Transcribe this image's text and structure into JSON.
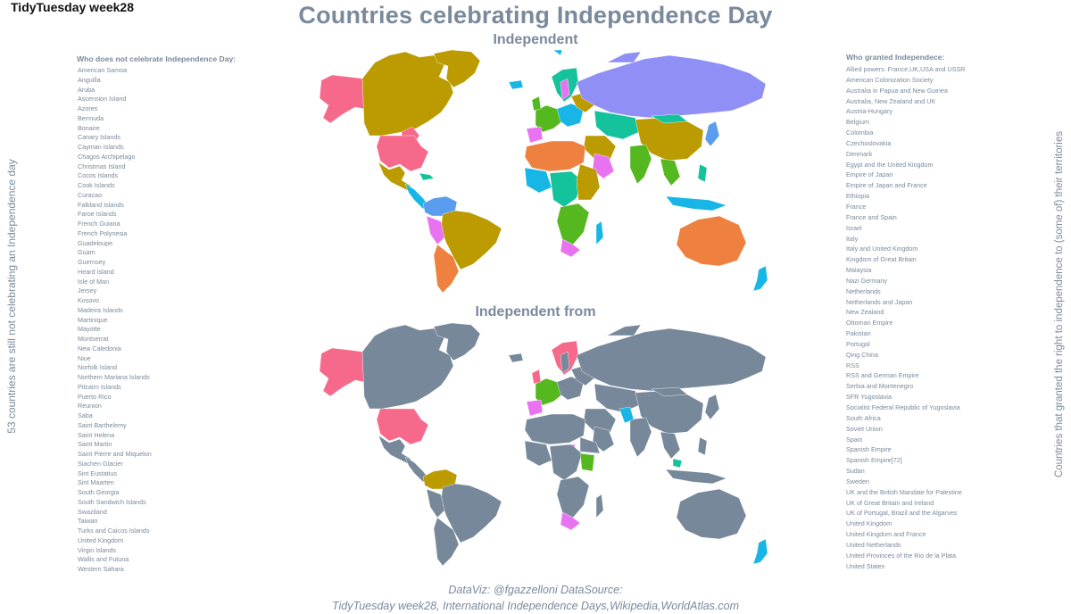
{
  "header": {
    "tag": "TidyTuesday week28",
    "title": "Countries celebrating Independence Day"
  },
  "maps": {
    "top_title": "Independent",
    "bottom_title": "Independent from",
    "colors": {
      "grey": "#77889a",
      "pink": "#f6698a",
      "olive": "#bb9b00",
      "lavender": "#8f8ff5",
      "teal": "#14c39b",
      "cyan": "#17b6e6",
      "green": "#54b81e",
      "magenta": "#e972f1",
      "orange": "#ee8040",
      "blue": "#5a9cee"
    }
  },
  "left_panel": {
    "header": "Who does not celebrate Independence Day:",
    "items": [
      "American Samoa",
      "Anguilla",
      "Aruba",
      "Ascension Island",
      "Azores",
      "Bermuda",
      "Bonaire",
      "Canary Islands",
      "Cayman Islands",
      "Chagos Archipelago",
      "Christmas Island",
      "Cocos Islands",
      "Cook Islands",
      "Curacao",
      "Falkland Islands",
      "Faroe Islands",
      "French Guiana",
      "French Polynesia",
      "Guadeloupe",
      "Guam",
      "Guernsey",
      "Heard Island",
      "Isle of Man",
      "Jersey",
      "Kosovo",
      "Madeira Islands",
      "Martinique",
      "Mayotte",
      "Montserrat",
      "New Caledonia",
      "Niue",
      "Norfolk Island",
      "Northern Mariana Islands",
      "Pitcairn Islands",
      "Puerto Rico",
      "Reunion",
      "Saba",
      "Saint Barthelemy",
      "Saint Helena",
      "Saint Martin",
      "Saint Pierre and Miquelon",
      "Siachen Glacier",
      "Sint Eustatius",
      "Sint Maarten",
      "South Georgia",
      "South Sandwich Islands",
      "Swaziland",
      "Taiwan",
      "Turks and Caicos Islands",
      "United Kingdom",
      "Virgin Islands",
      "Wallis and Futuna",
      "Western Sahara"
    ],
    "vertical_label": "53 countries are still not celebrating an Independence day"
  },
  "right_panel": {
    "header": "Who granted Independece:",
    "items": [
      "Allied powers. France,UK,USA and USSR",
      "American Colonization Society",
      "Australia in Papua and New Guinea",
      "Australia, New Zealand and UK",
      "Austria-Hungary",
      "Belgium",
      "Colombia",
      "Czechoslovakia",
      "Denmark",
      "Egypt and the United Kingdom",
      "Empire of Japan",
      "Empire of Japan and France",
      "Ethiopia",
      "France",
      "France and Spain",
      "Israel",
      "Italy",
      "Italy and United Kingdom",
      "Kingdom of Great Britain",
      "Malaysia",
      "Nazi Germany",
      "Netherlands",
      "Netherlands and Japan",
      "New Zealand",
      "Ottoman Empire",
      "Pakistan",
      "Portugal",
      "Qing China",
      "RSS",
      "RSS and German Empire",
      "Serbia and Montenegro",
      "SFR Yugoslavia",
      "Socialist Federal Republic of Yugoslavia",
      "South Africa",
      "Soviet Union",
      "Spain",
      "Spanish Empire",
      "Spanish Empire[72]",
      "Sudan",
      "Sweden",
      "UK and the British Mandate for Palestine",
      "UK of Great Britain and Ireland",
      "UK of Portugal, Brazil and the Algarves",
      "United Kingdom",
      "United Kingdom and France",
      "United Netherlands",
      "United Provinces of the Rio de la Plata",
      "United States"
    ],
    "vertical_label": "Countries that granted the right to independence to (some of) their territories"
  },
  "caption": {
    "line1": "DataViz: @fgazzelloni DataSource:",
    "line2": "TidyTuesday week28, International Independence Days,Wikipedia,WorldAtlas.com"
  }
}
